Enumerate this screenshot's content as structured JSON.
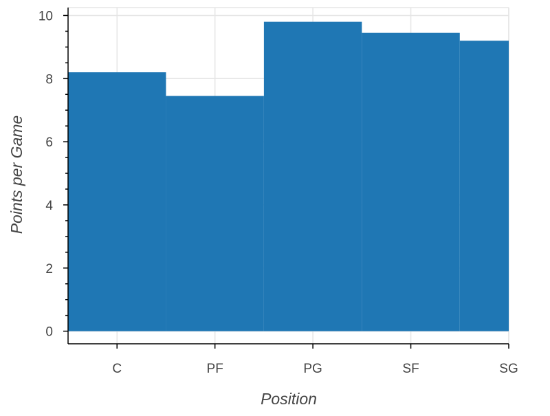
{
  "chart_data": {
    "type": "bar",
    "title": "",
    "xlabel": "Position",
    "ylabel": "Points per Game",
    "categories": [
      "C",
      "PF",
      "PG",
      "SF",
      "SG"
    ],
    "values": [
      8.2,
      7.45,
      9.8,
      9.45,
      9.2
    ],
    "ylim": [
      -0.4,
      10.25
    ],
    "yticks": [
      0,
      2,
      4,
      6,
      8,
      10
    ],
    "ytick_labels": [
      "0",
      "2",
      "4",
      "6",
      "8",
      "10"
    ],
    "grid": true,
    "legend": "none",
    "colors": {
      "bar": "#1f77b4",
      "grid": "#e5e5e5",
      "axis": "#000000",
      "text": "#444444"
    }
  }
}
